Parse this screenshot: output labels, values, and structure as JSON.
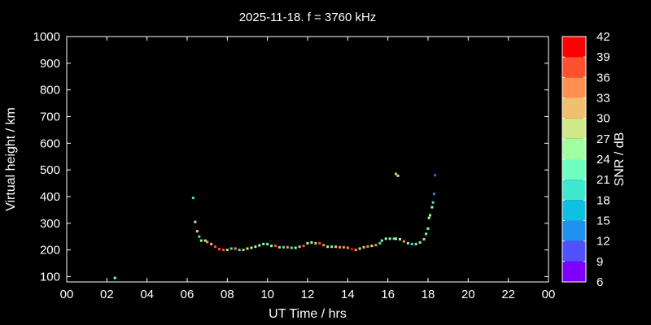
{
  "chart_data": {
    "type": "scatter",
    "title": "2025-11-18. f = 3760 kHz",
    "xlabel": "UT Time / hrs",
    "ylabel": "Virtual height / km",
    "xlim": [
      0,
      24
    ],
    "ylim": [
      80,
      1000
    ],
    "xticks": [
      "00",
      "02",
      "04",
      "06",
      "08",
      "10",
      "12",
      "14",
      "16",
      "18",
      "20",
      "22",
      "00"
    ],
    "yticks": [
      100,
      200,
      300,
      400,
      500,
      600,
      700,
      800,
      900,
      1000
    ],
    "grid": false,
    "colorbar": {
      "label": "SNR / dB",
      "ticks": [
        6,
        9,
        12,
        15,
        18,
        21,
        24,
        27,
        30,
        33,
        36,
        39,
        42
      ],
      "colors": [
        "#8000ff",
        "#5050ff",
        "#2090f0",
        "#10c0e0",
        "#40e8d0",
        "#70ffc0",
        "#a0ffa0",
        "#d0e888",
        "#f0c070",
        "#ff9050",
        "#ff5030",
        "#ff0000"
      ]
    },
    "points_columns": [
      "time_hrs",
      "height_km",
      "snr_db"
    ],
    "points": [
      [
        2.4,
        95,
        21
      ],
      [
        6.3,
        395,
        20
      ],
      [
        6.4,
        305,
        28
      ],
      [
        6.5,
        270,
        31
      ],
      [
        6.6,
        250,
        19
      ],
      [
        6.7,
        235,
        25
      ],
      [
        6.9,
        235,
        25
      ],
      [
        7.0,
        230,
        33
      ],
      [
        7.2,
        222,
        32
      ],
      [
        7.4,
        212,
        36
      ],
      [
        7.6,
        203,
        38
      ],
      [
        7.8,
        200,
        36
      ],
      [
        8.0,
        200,
        30
      ],
      [
        8.2,
        205,
        18
      ],
      [
        8.4,
        205,
        35
      ],
      [
        8.6,
        200,
        20
      ],
      [
        8.8,
        200,
        31
      ],
      [
        9.0,
        205,
        27
      ],
      [
        9.2,
        208,
        26
      ],
      [
        9.4,
        212,
        26
      ],
      [
        9.6,
        217,
        24
      ],
      [
        9.8,
        222,
        23
      ],
      [
        10.0,
        222,
        22
      ],
      [
        10.2,
        215,
        26
      ],
      [
        10.4,
        215,
        37
      ],
      [
        10.6,
        210,
        30
      ],
      [
        10.8,
        210,
        18
      ],
      [
        11.0,
        210,
        33
      ],
      [
        11.2,
        208,
        20
      ],
      [
        11.4,
        208,
        21
      ],
      [
        11.6,
        212,
        30
      ],
      [
        11.8,
        215,
        36
      ],
      [
        12.0,
        225,
        25
      ],
      [
        12.2,
        228,
        26
      ],
      [
        12.4,
        225,
        31
      ],
      [
        12.6,
        225,
        38
      ],
      [
        12.8,
        218,
        35
      ],
      [
        13.0,
        212,
        28
      ],
      [
        13.2,
        212,
        22
      ],
      [
        13.4,
        212,
        31
      ],
      [
        13.6,
        210,
        33
      ],
      [
        13.8,
        210,
        35
      ],
      [
        14.0,
        208,
        33
      ],
      [
        14.2,
        203,
        40
      ],
      [
        14.4,
        200,
        34
      ],
      [
        14.6,
        205,
        28
      ],
      [
        14.8,
        210,
        31
      ],
      [
        15.0,
        213,
        33
      ],
      [
        15.2,
        215,
        29
      ],
      [
        15.4,
        218,
        35
      ],
      [
        15.6,
        225,
        18
      ],
      [
        15.7,
        235,
        22
      ],
      [
        15.9,
        242,
        25
      ],
      [
        16.1,
        242,
        25
      ],
      [
        16.3,
        242,
        20
      ],
      [
        16.4,
        242,
        24
      ],
      [
        16.6,
        240,
        26
      ],
      [
        16.8,
        232,
        34
      ],
      [
        17.0,
        225,
        22
      ],
      [
        17.2,
        222,
        20
      ],
      [
        17.4,
        222,
        21
      ],
      [
        17.6,
        228,
        22
      ],
      [
        17.8,
        240,
        31
      ],
      [
        17.9,
        260,
        23
      ],
      [
        18.0,
        280,
        21
      ],
      [
        18.05,
        320,
        25
      ],
      [
        18.1,
        330,
        26
      ],
      [
        18.2,
        360,
        25
      ],
      [
        18.25,
        378,
        19
      ],
      [
        18.3,
        410,
        14
      ],
      [
        18.35,
        480,
        10
      ],
      [
        16.4,
        485,
        31
      ],
      [
        16.5,
        478,
        25
      ]
    ]
  }
}
